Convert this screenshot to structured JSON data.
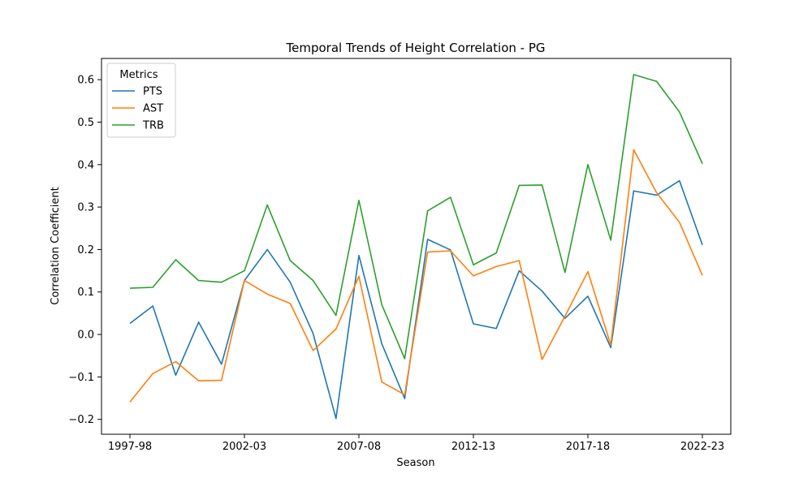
{
  "chart_data": {
    "type": "line",
    "title": "Temporal Trends of Height Correlation - PG",
    "xlabel": "Season",
    "ylabel": "Correlation Coefficient",
    "ylim": [
      -0.235,
      0.65
    ],
    "yticks": [
      -0.2,
      -0.1,
      0.0,
      0.1,
      0.2,
      0.3,
      0.4,
      0.5,
      0.6
    ],
    "ytick_labels": [
      "−0.2",
      "−0.1",
      "0.0",
      "0.1",
      "0.2",
      "0.3",
      "0.4",
      "0.5",
      "0.6"
    ],
    "x": [
      "1997-98",
      "1998-99",
      "1999-00",
      "2000-01",
      "2001-02",
      "2002-03",
      "2003-04",
      "2004-05",
      "2005-06",
      "2006-07",
      "2007-08",
      "2008-09",
      "2009-10",
      "2010-11",
      "2011-12",
      "2012-13",
      "2013-14",
      "2014-15",
      "2015-16",
      "2016-17",
      "2017-18",
      "2018-19",
      "2019-20",
      "2020-21",
      "2021-22",
      "2022-23"
    ],
    "xticks_shown": [
      "1997-98",
      "2002-03",
      "2007-08",
      "2012-13",
      "2017-18",
      "2022-23"
    ],
    "legend": {
      "title": "Metrics",
      "placement": "upper-left"
    },
    "grid": false,
    "series": [
      {
        "name": "PTS",
        "color": "#1f77b4",
        "values": [
          0.026,
          0.067,
          -0.096,
          0.029,
          -0.07,
          0.127,
          0.2,
          0.123,
          0.002,
          -0.198,
          0.186,
          -0.022,
          -0.151,
          0.224,
          0.199,
          0.025,
          0.014,
          0.15,
          0.102,
          0.038,
          0.09,
          -0.031,
          0.338,
          0.328,
          0.362,
          0.211
        ]
      },
      {
        "name": "AST",
        "color": "#ff7f0e",
        "values": [
          -0.159,
          -0.092,
          -0.064,
          -0.109,
          -0.108,
          0.127,
          0.095,
          0.073,
          -0.038,
          0.013,
          0.137,
          -0.112,
          -0.142,
          0.194,
          0.197,
          0.138,
          0.16,
          0.174,
          -0.059,
          0.043,
          0.148,
          -0.025,
          0.435,
          0.334,
          0.264,
          0.139
        ]
      },
      {
        "name": "TRB",
        "color": "#2ca02c",
        "values": [
          0.109,
          0.111,
          0.176,
          0.127,
          0.123,
          0.15,
          0.305,
          0.174,
          0.127,
          0.045,
          0.316,
          0.07,
          -0.057,
          0.291,
          0.323,
          0.164,
          0.192,
          0.351,
          0.352,
          0.146,
          0.4,
          0.222,
          0.612,
          0.596,
          0.524,
          0.402
        ]
      }
    ]
  }
}
